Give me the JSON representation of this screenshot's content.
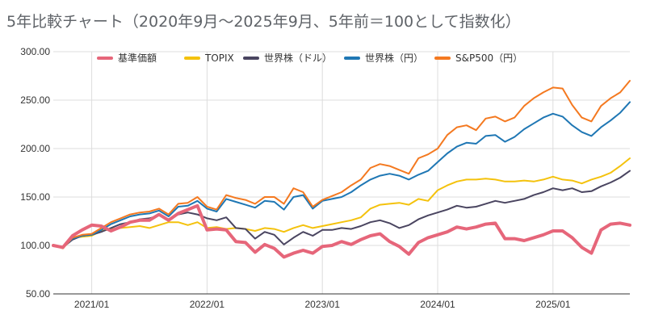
{
  "chart_data": {
    "type": "line",
    "title": "5年比較チャート（2020年9月〜2025年9月、5年前＝100として指数化）",
    "xlabel": "",
    "ylabel": "",
    "ylim": [
      50,
      300
    ],
    "y_ticks": [
      50,
      100,
      150,
      200,
      250,
      300
    ],
    "y_tick_labels": [
      "50.00",
      "100.00",
      "150.00",
      "200.00",
      "250.00",
      "300.00"
    ],
    "x_range": [
      "2020-09",
      "2025-09"
    ],
    "x_ticks": [
      {
        "date": "2021-01",
        "label": "2021/01"
      },
      {
        "date": "2022-01",
        "label": "2022/01"
      },
      {
        "date": "2023-01",
        "label": "2023/01"
      },
      {
        "date": "2024-01",
        "label": "2024/01"
      },
      {
        "date": "2025-01",
        "label": "2025/01"
      }
    ],
    "grid": true,
    "legend_position": "top",
    "x": [
      "2020-09",
      "2020-10",
      "2020-11",
      "2020-12",
      "2021-01",
      "2021-02",
      "2021-03",
      "2021-04",
      "2021-05",
      "2021-06",
      "2021-07",
      "2021-08",
      "2021-09",
      "2021-10",
      "2021-11",
      "2021-12",
      "2022-01",
      "2022-02",
      "2022-03",
      "2022-04",
      "2022-05",
      "2022-06",
      "2022-07",
      "2022-08",
      "2022-09",
      "2022-10",
      "2022-11",
      "2022-12",
      "2023-01",
      "2023-02",
      "2023-03",
      "2023-04",
      "2023-05",
      "2023-06",
      "2023-07",
      "2023-08",
      "2023-09",
      "2023-10",
      "2023-11",
      "2023-12",
      "2024-01",
      "2024-02",
      "2024-03",
      "2024-04",
      "2024-05",
      "2024-06",
      "2024-07",
      "2024-08",
      "2024-09",
      "2024-10",
      "2024-11",
      "2024-12",
      "2025-01",
      "2025-02",
      "2025-03",
      "2025-04",
      "2025-05",
      "2025-06",
      "2025-07",
      "2025-08",
      "2025-09"
    ],
    "series": [
      {
        "name": "基準価額",
        "color": "#e6667a",
        "width": 4,
        "values": [
          100,
          98,
          110,
          116,
          121,
          120,
          115,
          119,
          124,
          126,
          126,
          132,
          126,
          133,
          137,
          141,
          116,
          117,
          116,
          104,
          103,
          93,
          101,
          97,
          88,
          92,
          95,
          92,
          99,
          100,
          104,
          101,
          106,
          110,
          112,
          104,
          99,
          91,
          103,
          108,
          111,
          114,
          119,
          117,
          119,
          122,
          123,
          107,
          107,
          105,
          108,
          111,
          115,
          115,
          108,
          98,
          92,
          116,
          122,
          123,
          121
        ]
      },
      {
        "name": "TOPIX",
        "color": "#f4c20d",
        "width": 2,
        "values": [
          100,
          97,
          108,
          109,
          110,
          115,
          117,
          118,
          119,
          120,
          118,
          121,
          124,
          124,
          121,
          124,
          118,
          119,
          117,
          118,
          117,
          115,
          118,
          117,
          114,
          118,
          121,
          118,
          120,
          122,
          124,
          126,
          129,
          138,
          142,
          143,
          144,
          142,
          148,
          146,
          157,
          162,
          166,
          168,
          168,
          169,
          168,
          166,
          166,
          167,
          166,
          168,
          171,
          168,
          167,
          164,
          168,
          171,
          175,
          182,
          190
        ]
      },
      {
        "name": "世界株（ドル）",
        "color": "#4a4560",
        "width": 2,
        "values": [
          100,
          98,
          106,
          110,
          111,
          114,
          118,
          122,
          124,
          127,
          128,
          131,
          127,
          132,
          134,
          132,
          128,
          126,
          129,
          118,
          117,
          107,
          114,
          111,
          101,
          108,
          114,
          110,
          116,
          116,
          118,
          117,
          120,
          124,
          126,
          123,
          118,
          121,
          127,
          131,
          134,
          137,
          141,
          139,
          140,
          143,
          146,
          144,
          146,
          148,
          152,
          155,
          159,
          157,
          159,
          155,
          156,
          161,
          165,
          170,
          177
        ]
      },
      {
        "name": "世界株（円）",
        "color": "#1f77b4",
        "width": 2,
        "values": [
          100,
          98,
          107,
          110,
          111,
          116,
          122,
          126,
          130,
          132,
          133,
          136,
          130,
          140,
          141,
          146,
          138,
          135,
          148,
          145,
          142,
          139,
          146,
          145,
          137,
          150,
          152,
          138,
          146,
          148,
          150,
          155,
          162,
          168,
          172,
          174,
          172,
          168,
          173,
          177,
          186,
          195,
          202,
          206,
          205,
          213,
          214,
          207,
          212,
          220,
          226,
          232,
          236,
          233,
          224,
          217,
          213,
          222,
          229,
          237,
          248
        ]
      },
      {
        "name": "S&P500（円）",
        "color": "#f47920",
        "width": 2,
        "values": [
          100,
          97,
          108,
          111,
          112,
          118,
          124,
          128,
          132,
          134,
          135,
          138,
          132,
          143,
          144,
          150,
          140,
          137,
          152,
          149,
          147,
          143,
          150,
          150,
          143,
          159,
          155,
          140,
          147,
          151,
          155,
          162,
          168,
          180,
          184,
          182,
          178,
          174,
          190,
          194,
          200,
          214,
          222,
          224,
          219,
          231,
          233,
          228,
          232,
          244,
          252,
          258,
          263,
          262,
          245,
          232,
          228,
          244,
          252,
          258,
          270
        ]
      }
    ]
  }
}
